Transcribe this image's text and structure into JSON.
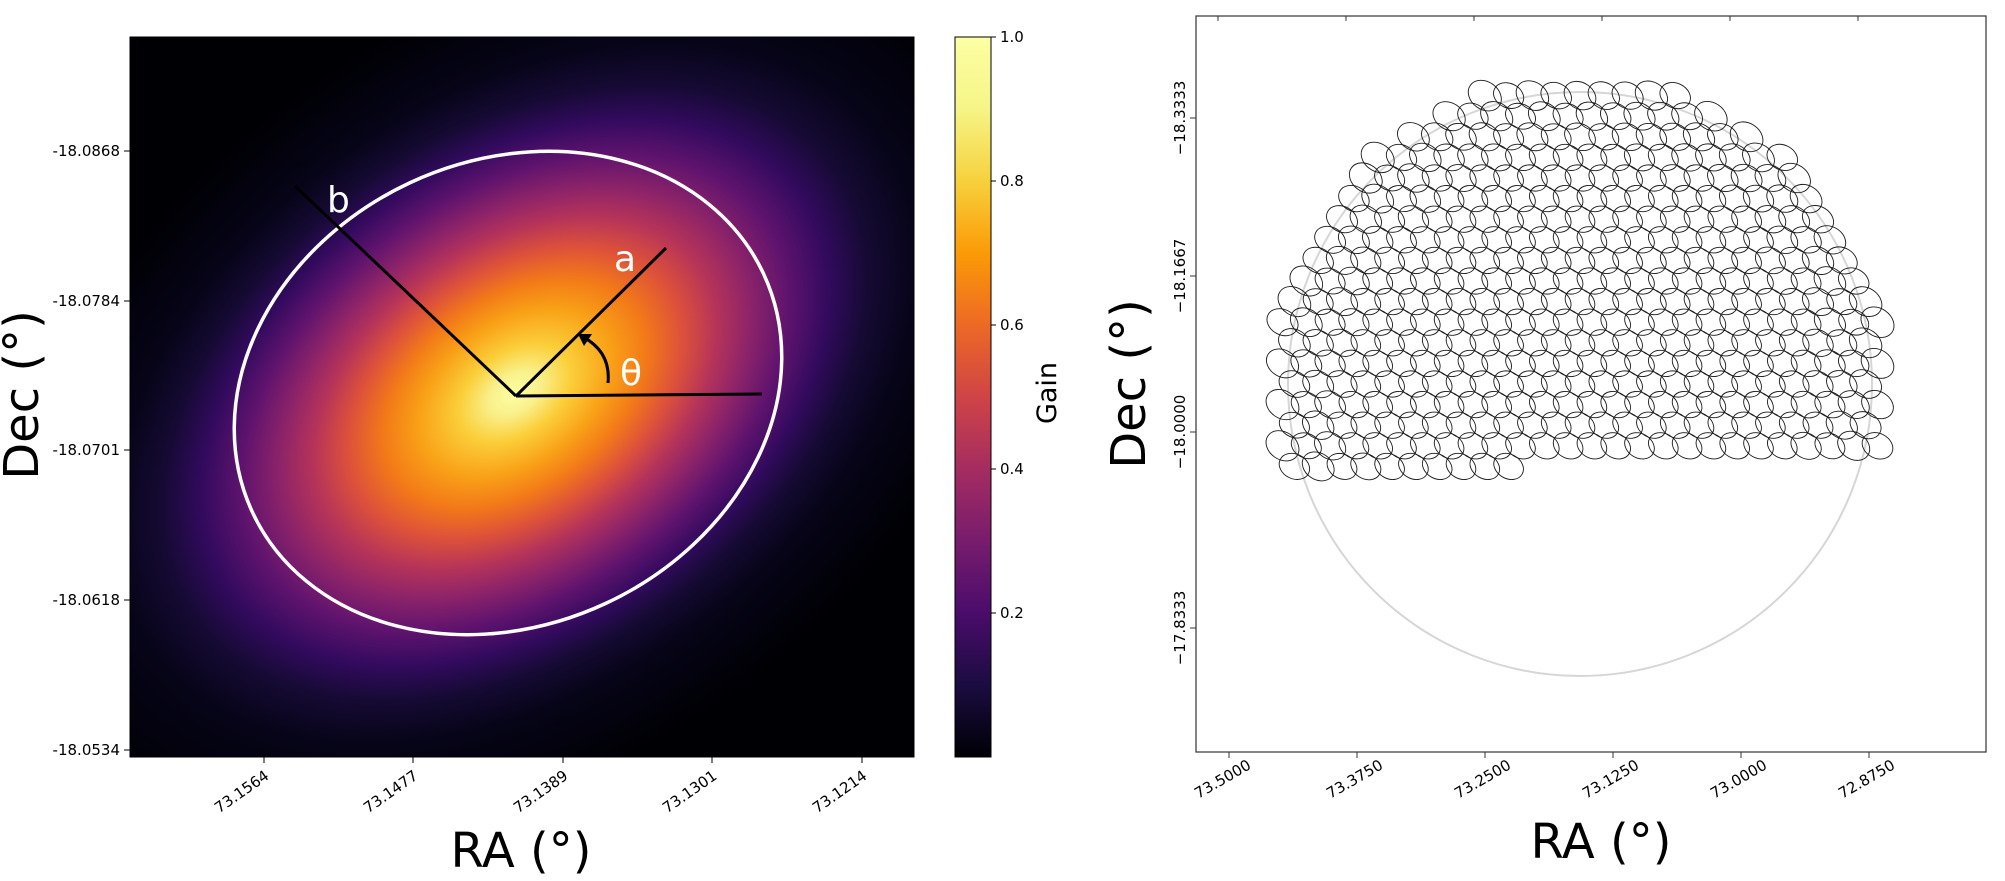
{
  "chart_data": [
    {
      "type": "heatmap",
      "description_text": "",
      "xlabel": "RA (°)",
      "ylabel": "Dec (°)",
      "xticks": [
        "73.1564",
        "73.1477",
        "73.1389",
        "73.1301",
        "73.1214"
      ],
      "yticks": [
        "-18.0868",
        "-18.0784",
        "-18.0701",
        "-18.0618",
        "-18.0534"
      ],
      "colorbar": {
        "label": "Gain",
        "ticks": [
          "0.2",
          "0.4",
          "0.6",
          "0.8",
          "1.0"
        ],
        "tick_values": [
          0.2,
          0.4,
          0.6,
          0.8,
          1.0
        ],
        "range": [
          0.0,
          1.0
        ],
        "colormap": "inferno"
      },
      "beam": {
        "peak_gain": 1.0,
        "center_ra": 73.1418,
        "center_dec": -18.0733,
        "position_angle_deg": 45,
        "axis_ratio": 0.72
      },
      "annotations": {
        "a": "a",
        "b": "b",
        "theta": "θ"
      }
    },
    {
      "type": "scatter",
      "xlabel": "RA (°)",
      "ylabel": "Dec (°)",
      "xticks": [
        "73.5000",
        "73.3750",
        "73.2500",
        "73.1250",
        "73.0000",
        "72.8750"
      ],
      "yticks": [
        "−18.3333",
        "−18.1667",
        "−18.0000",
        "−17.8333"
      ],
      "tiling": {
        "beam_shape": "ellipse",
        "beam_count": 397,
        "beam_axis_ratio": 0.78,
        "beam_tilt_deg": 30
      }
    }
  ]
}
